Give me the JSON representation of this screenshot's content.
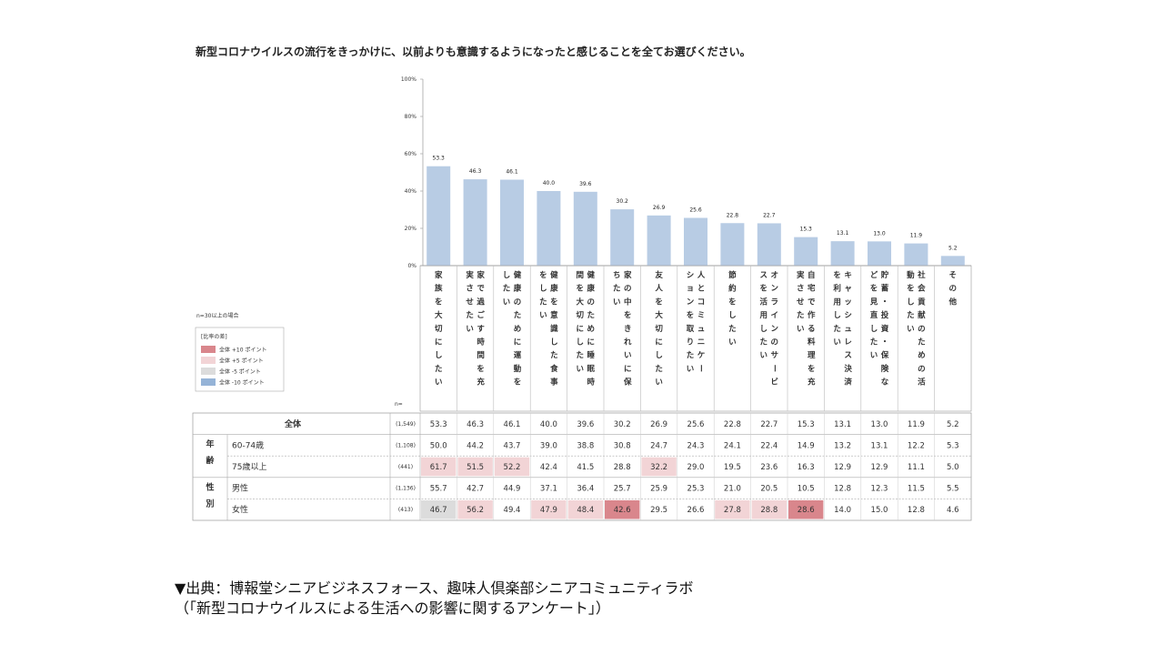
{
  "chart_data": {
    "type": "bar",
    "title": "新型コロナウイルスの流行をきっかけに、以前よりも意識するようになったと感じることを全てお選びください。",
    "yticks": [
      "100%",
      "80%",
      "60%",
      "40%",
      "20%",
      "0%"
    ],
    "ylim": [
      0,
      100
    ],
    "categories": [
      "家族を大切にしたい",
      "家で過ごす時間を充実させたい",
      "健康のために運動をしたい",
      "健康を意識した食事をしたい",
      "健康のために睡眠時間を大切にしたい",
      "家の中をきれいに保ちたい",
      "友人を大切にしたい",
      "人とコミュニケーションを取りたい",
      "節約をしたい",
      "オンラインのサービスを活用したい",
      "自宅で作る料理を充実させたい",
      "キャッシュレス決済を利用したい",
      "貯蓄・投資・保険などを見直したい",
      "社会貢献のための活動をしたい",
      "その他"
    ],
    "category_columns": [
      [
        "家族を大切にしたい"
      ],
      [
        "家で過ごす時間を充",
        "実させたい"
      ],
      [
        "健康のために運動を",
        "したい"
      ],
      [
        "健康を意識した食事",
        "をしたい"
      ],
      [
        "健康のために睡眠時",
        "間を大切にしたい"
      ],
      [
        "家の中をきれいに保",
        "ちたい"
      ],
      [
        "友人を大切にしたい"
      ],
      [
        "人とコミュニケー",
        "ションを取りたい"
      ],
      [
        "節約をしたい"
      ],
      [
        "オンラインのサービ",
        "スを活用したい"
      ],
      [
        "自宅で作る料理を充",
        "実させたい"
      ],
      [
        "キャッシュレス決済",
        "を利用したい"
      ],
      [
        "貯蓄・投資・保険な",
        "どを見直したい"
      ],
      [
        "社会貢献のための活",
        "動をしたい"
      ],
      [
        "その他"
      ]
    ],
    "values": [
      53.3,
      46.3,
      46.1,
      40.0,
      39.6,
      30.2,
      26.9,
      25.6,
      22.8,
      22.7,
      15.3,
      13.1,
      13.0,
      11.9,
      5.2
    ],
    "value_labels": [
      "53.3",
      "46.3",
      "46.1",
      "40.0",
      "39.6",
      "30.2",
      "26.9",
      "25.6",
      "22.8",
      "22.7",
      "15.3",
      "13.1",
      "13.0",
      "11.9",
      "5.2"
    ],
    "bar_color": "#b8cce4",
    "n_label": "n=",
    "note": "n=30以上の場合",
    "legend": {
      "title": "[比率の差]",
      "items": [
        {
          "label": "全体 +10 ポイント",
          "color": "#d9868c"
        },
        {
          "label": "全体 +5 ポイント",
          "color": "#f2d4d6"
        },
        {
          "label": "全体 -5 ポイント",
          "color": "#dcdcdc"
        },
        {
          "label": "全体 -10 ポイント",
          "color": "#95b3d7"
        }
      ]
    },
    "table": {
      "rows": [
        {
          "group": "",
          "label": "全体",
          "n": "(1,549)",
          "values": [
            "53.3",
            "46.3",
            "46.1",
            "40.0",
            "39.6",
            "30.2",
            "26.9",
            "25.6",
            "22.8",
            "22.7",
            "15.3",
            "13.1",
            "13.0",
            "11.9",
            "5.2"
          ],
          "highlight": [
            "",
            "",
            "",
            "",
            "",
            "",
            "",
            "",
            "",
            "",
            "",
            "",
            "",
            "",
            ""
          ]
        },
        {
          "group": "年齢",
          "label": "60-74歳",
          "n": "(1,108)",
          "values": [
            "50.0",
            "44.2",
            "43.7",
            "39.0",
            "38.8",
            "30.8",
            "24.7",
            "24.3",
            "24.1",
            "22.4",
            "14.9",
            "13.2",
            "13.1",
            "12.2",
            "5.3"
          ],
          "highlight": [
            "",
            "",
            "",
            "",
            "",
            "",
            "",
            "",
            "",
            "",
            "",
            "",
            "",
            "",
            ""
          ]
        },
        {
          "group": "",
          "label": "75歳以上",
          "n": "(441)",
          "values": [
            "61.7",
            "51.5",
            "52.2",
            "42.4",
            "41.5",
            "28.8",
            "32.2",
            "29.0",
            "19.5",
            "23.6",
            "16.3",
            "12.9",
            "12.9",
            "11.1",
            "5.0"
          ],
          "highlight": [
            "+5",
            "+5",
            "+5",
            "",
            "",
            "",
            "+5",
            "",
            "",
            "",
            "",
            "",
            "",
            "",
            ""
          ]
        },
        {
          "group": "性別",
          "label": "男性",
          "n": "(1,136)",
          "values": [
            "55.7",
            "42.7",
            "44.9",
            "37.1",
            "36.4",
            "25.7",
            "25.9",
            "25.3",
            "21.0",
            "20.5",
            "10.5",
            "12.8",
            "12.3",
            "11.5",
            "5.5"
          ],
          "highlight": [
            "",
            "",
            "",
            "",
            "",
            "",
            "",
            "",
            "",
            "",
            "",
            "",
            "",
            "",
            ""
          ]
        },
        {
          "group": "",
          "label": "女性",
          "n": "(413)",
          "values": [
            "46.7",
            "56.2",
            "49.4",
            "47.9",
            "48.4",
            "42.6",
            "29.5",
            "26.6",
            "27.8",
            "28.8",
            "28.6",
            "14.0",
            "15.0",
            "12.8",
            "4.6"
          ],
          "highlight": [
            "-5",
            "+5",
            "",
            "+5",
            "+5",
            "+10",
            "",
            "",
            "+5",
            "+5",
            "+10",
            "",
            "",
            "",
            ""
          ]
        }
      ]
    }
  },
  "source": {
    "line1": "▼出典：博報堂シニアビジネスフォース、趣味人倶楽部シニアコミュニティラボ",
    "line2": "（「新型コロナウイルスによる生活への影響に関するアンケート」）"
  }
}
